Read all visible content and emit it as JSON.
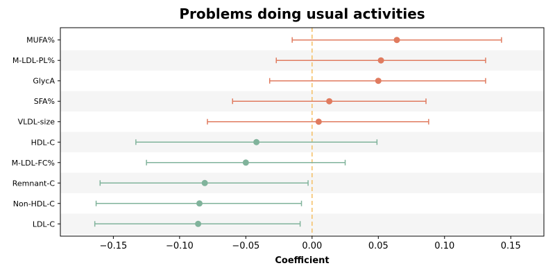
{
  "chart_data": {
    "type": "forest",
    "title": "Problems doing usual activities",
    "xlabel": "Coefficient",
    "ylabel": "",
    "xlim": [
      -0.19,
      0.175
    ],
    "xticks": [
      -0.15,
      -0.1,
      -0.05,
      0.0,
      0.05,
      0.1,
      0.15
    ],
    "xtick_labels": [
      "−0.15",
      "−0.10",
      "−0.05",
      "0.00",
      "0.05",
      "0.10",
      "0.15"
    ],
    "reference_line": 0.0,
    "grid": false,
    "colors": {
      "positive": "#e07b5f",
      "negative": "#80b39b",
      "reference": "#f5c26b",
      "band": "#f5f5f5"
    },
    "rows": [
      {
        "label": "MUFA%",
        "estimate": 0.064,
        "lower": -0.015,
        "upper": 0.143
      },
      {
        "label": "M-LDL-PL%",
        "estimate": 0.052,
        "lower": -0.027,
        "upper": 0.131
      },
      {
        "label": "GlycA",
        "estimate": 0.05,
        "lower": -0.032,
        "upper": 0.131
      },
      {
        "label": "SFA%",
        "estimate": 0.013,
        "lower": -0.06,
        "upper": 0.086
      },
      {
        "label": "VLDL-size",
        "estimate": 0.005,
        "lower": -0.079,
        "upper": 0.088
      },
      {
        "label": "HDL-C",
        "estimate": -0.042,
        "lower": -0.133,
        "upper": 0.049
      },
      {
        "label": "M-LDL-FC%",
        "estimate": -0.05,
        "lower": -0.125,
        "upper": 0.025
      },
      {
        "label": "Remnant-C",
        "estimate": -0.081,
        "lower": -0.16,
        "upper": -0.003
      },
      {
        "label": "Non-HDL-C",
        "estimate": -0.085,
        "lower": -0.163,
        "upper": -0.008
      },
      {
        "label": "LDL-C",
        "estimate": -0.086,
        "lower": -0.164,
        "upper": -0.009
      }
    ]
  }
}
